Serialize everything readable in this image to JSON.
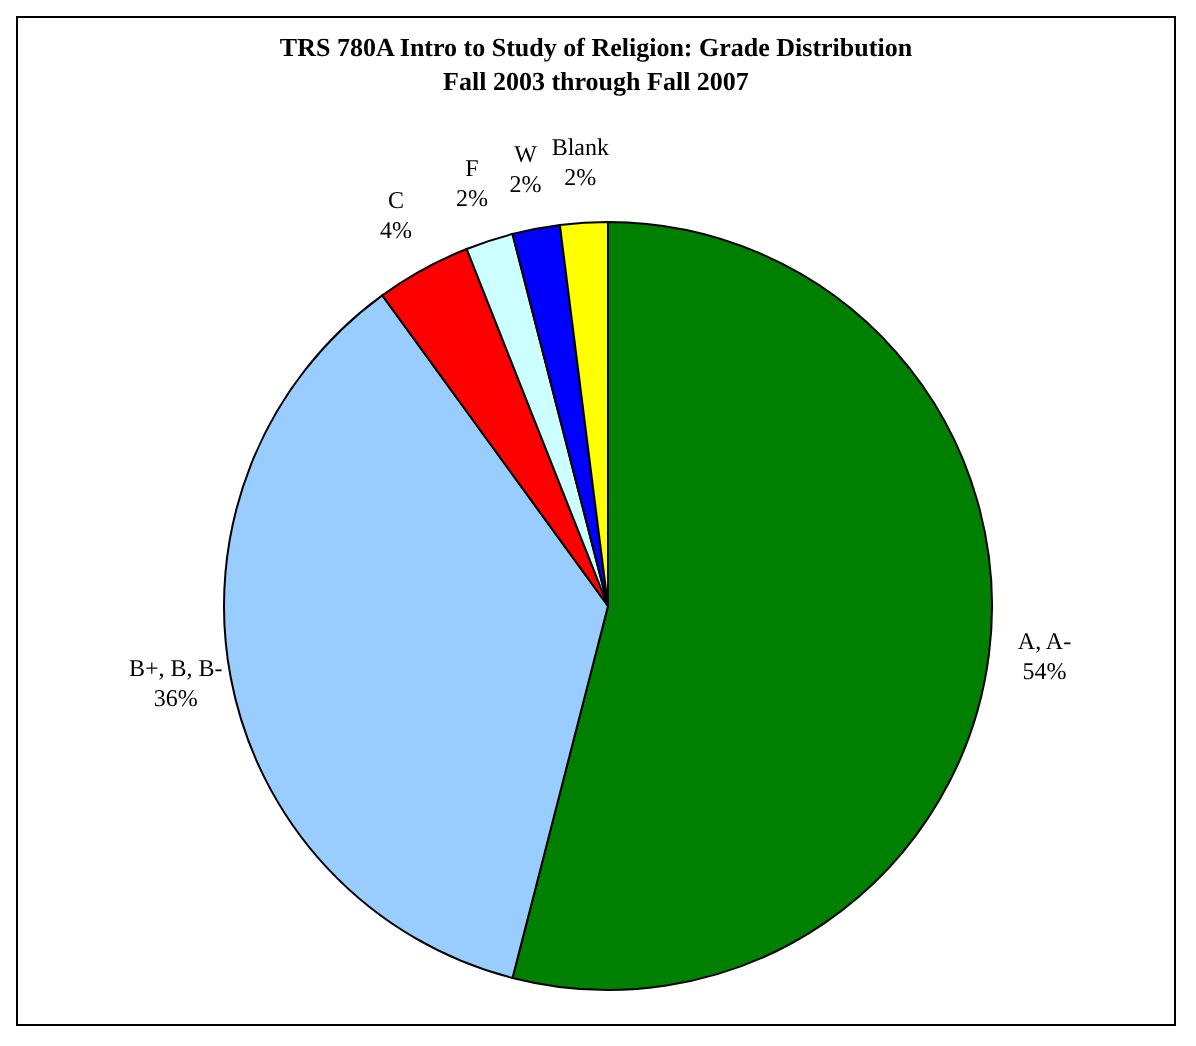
{
  "chart_data": {
    "type": "pie",
    "title": "TRS 780A Intro to Study of Religion: Grade Distribution",
    "subtitle": "Fall 2003 through Fall 2007",
    "categories": [
      "A, A-",
      "B+, B, B-",
      "C",
      "F",
      "W",
      "Blank"
    ],
    "values": [
      54,
      36,
      4,
      2,
      2,
      2
    ],
    "colors": [
      "#008000",
      "#99ccff",
      "#ff0000",
      "#ccffff",
      "#0000ff",
      "#ffff00"
    ],
    "value_labels": [
      "54%",
      "36%",
      "4%",
      "2%",
      "2%",
      "2%"
    ],
    "legend": false
  }
}
